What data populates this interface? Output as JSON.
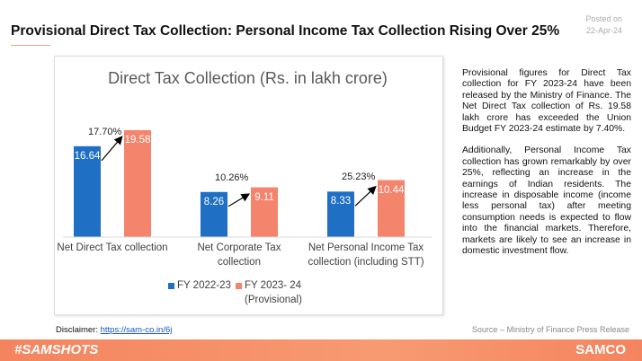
{
  "header": {
    "title": "Provisional Direct Tax Collection: Personal Income Tax Collection Rising Over 25%",
    "posted_label": "Posted on",
    "posted_date": "22-Apr-24"
  },
  "chart_data": {
    "type": "bar",
    "title": "Direct Tax Collection (Rs. in lakh crore)",
    "categories": [
      "Net Direct Tax collection",
      "Net Corporate Tax collection",
      "Net Personal Income Tax collection (including STT)"
    ],
    "series": [
      {
        "name": "FY 2022-23",
        "color": "#1f6fc5",
        "values": [
          16.64,
          8.26,
          8.33
        ]
      },
      {
        "name": "FY 2023- 24 (Provisional)",
        "color": "#f4846c",
        "values": [
          19.58,
          9.11,
          10.44
        ]
      }
    ],
    "annotations": [
      "17.70%",
      "10.26%",
      "25.23%"
    ]
  },
  "description": [
    "Provisional figures for Direct Tax collection for FY 2023-24 have been released by the Ministry of Finance. The Net Direct Tax collection of Rs. 19.58 lakh crore has exceeded the Union Budget FY 2023-24 estimate by 7.40%.",
    "Additionally, Personal Income Tax collection has grown remarkably by over 25%, reflecting an increase in the earnings of Indian residents. The increase in disposable income (income less personal tax) after meeting consumption needs is expected to flow into the financial markets. Therefore, markets are likely to see an increase in domestic investment flow."
  ],
  "disclaimer": {
    "label": "Disclaimer:",
    "link": "https://sam-co.in/6j"
  },
  "source": "Source – Ministry of Finance Press Release",
  "footer": {
    "hashtag": "#SAMSHOTS",
    "brand": "SAMCO"
  }
}
